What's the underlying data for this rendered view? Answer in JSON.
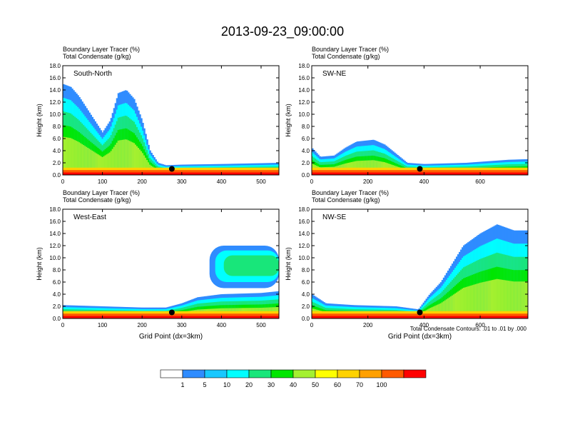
{
  "title": "2013-09-23_09:00:00",
  "footnote": "Total Condensate Contours: .01 to .01 by .000",
  "colorbar": {
    "labels": [
      "1",
      "5",
      "10",
      "20",
      "30",
      "40",
      "50",
      "60",
      "70",
      "100"
    ],
    "colors": [
      "#ffffff",
      "#2f8cff",
      "#18c8ff",
      "#00ffff",
      "#18e67a",
      "#00e600",
      "#a4f030",
      "#ffff00",
      "#ffd200",
      "#ffa000",
      "#ff5a00",
      "#ff0000"
    ]
  },
  "chart_data": [
    {
      "type": "heatmap",
      "panel_label": "South-North",
      "header_line1": "Boundary Layer Tracer   (%)",
      "header_line2": "Total Condensate   (g/kg)",
      "ylabel": "Height (km)",
      "xlabel": "",
      "xlim": [
        0,
        545
      ],
      "ylim": [
        0,
        18
      ],
      "xticks": [
        0,
        100,
        200,
        300,
        400,
        500
      ],
      "yticks": [
        "0.0",
        "2.0",
        "4.0",
        "6.0",
        "8.0",
        "10.0",
        "12.0",
        "14.0",
        "16.0",
        "18.0"
      ],
      "marker": {
        "x": 275,
        "y": 1.0
      },
      "tracer_top_profile": [
        [
          0,
          15
        ],
        [
          20,
          14.5
        ],
        [
          40,
          13
        ],
        [
          60,
          11
        ],
        [
          80,
          9
        ],
        [
          100,
          7
        ],
        [
          120,
          9
        ],
        [
          140,
          13.5
        ],
        [
          160,
          14
        ],
        [
          180,
          12.5
        ],
        [
          200,
          9
        ],
        [
          220,
          4
        ],
        [
          240,
          2
        ],
        [
          260,
          1.6
        ],
        [
          300,
          1.7
        ],
        [
          400,
          1.8
        ],
        [
          545,
          2.0
        ]
      ]
    },
    {
      "type": "heatmap",
      "panel_label": "SW-NE",
      "header_line1": "Boundary Layer Tracer   (%)",
      "header_line2": "Total Condensate   (g/kg)",
      "ylabel": "Height (km)",
      "xlabel": "",
      "xlim": [
        0,
        770
      ],
      "ylim": [
        0,
        18
      ],
      "xticks": [
        0,
        200,
        400,
        600
      ],
      "yticks": [
        "0.0",
        "2.0",
        "4.0",
        "6.0",
        "8.0",
        "10.0",
        "12.0",
        "14.0",
        "16.0",
        "18.0"
      ],
      "marker": {
        "x": 385,
        "y": 1.0
      },
      "tracer_top_profile": [
        [
          0,
          4.5
        ],
        [
          30,
          3
        ],
        [
          80,
          3.2
        ],
        [
          120,
          4.5
        ],
        [
          160,
          5.5
        ],
        [
          220,
          5.8
        ],
        [
          260,
          5
        ],
        [
          300,
          3.5
        ],
        [
          340,
          2
        ],
        [
          400,
          1.8
        ],
        [
          550,
          2
        ],
        [
          700,
          2.5
        ],
        [
          770,
          2.6
        ]
      ]
    },
    {
      "type": "heatmap",
      "panel_label": "West-East",
      "header_line1": "Boundary Layer Tracer   (%)",
      "header_line2": "Total Condensate   (g/kg)",
      "ylabel": "Height (km)",
      "xlabel": "Grid Point (dx=3km)",
      "xlim": [
        0,
        545
      ],
      "ylim": [
        0,
        18
      ],
      "xticks": [
        0,
        100,
        200,
        300,
        400,
        500
      ],
      "yticks": [
        "0.0",
        "2.0",
        "4.0",
        "6.0",
        "8.0",
        "10.0",
        "12.0",
        "14.0",
        "16.0",
        "18.0"
      ],
      "marker": {
        "x": 275,
        "y": 1.0
      },
      "tracer_top_profile": [
        [
          0,
          2.2
        ],
        [
          100,
          2.0
        ],
        [
          200,
          1.8
        ],
        [
          260,
          1.8
        ],
        [
          300,
          2.5
        ],
        [
          340,
          3.5
        ],
        [
          400,
          4
        ],
        [
          500,
          4.2
        ],
        [
          545,
          4.5
        ]
      ],
      "elevated_layer": {
        "x": [
          370,
          545
        ],
        "bottom": 5.0,
        "top": 12.0
      }
    },
    {
      "type": "heatmap",
      "panel_label": "NW-SE",
      "header_line1": "Boundary Layer Tracer   (%)",
      "header_line2": "Total Condensate   (g/kg)",
      "ylabel": "Height (km)",
      "xlabel": "Grid Point (dx=3km)",
      "xlim": [
        0,
        770
      ],
      "ylim": [
        0,
        18
      ],
      "xticks": [
        0,
        200,
        400,
        600
      ],
      "yticks": [
        "0.0",
        "2.0",
        "4.0",
        "6.0",
        "8.0",
        "10.0",
        "12.0",
        "14.0",
        "16.0",
        "18.0"
      ],
      "marker": {
        "x": 385,
        "y": 1.0
      },
      "tracer_top_profile": [
        [
          0,
          4
        ],
        [
          50,
          2.5
        ],
        [
          150,
          2.2
        ],
        [
          300,
          2
        ],
        [
          380,
          1.5
        ],
        [
          420,
          4
        ],
        [
          460,
          6
        ],
        [
          500,
          9
        ],
        [
          540,
          12
        ],
        [
          600,
          14
        ],
        [
          660,
          15.5
        ],
        [
          720,
          14.5
        ]
      ]
    }
  ]
}
